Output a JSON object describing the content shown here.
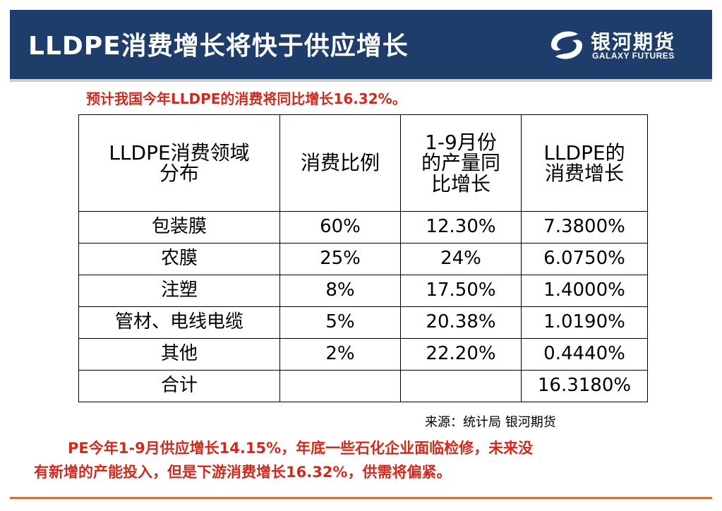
{
  "header": {
    "title": "LLDPE消费增长将快于供应增长",
    "logo_cn": "银河期货",
    "logo_en": "GALAXY FUTURES",
    "logo_icon": "galaxy-swirl-icon",
    "bg_color": "#1f3d6b"
  },
  "intro": "预计我国今年LLDPE的消费将同比增长16.32%。",
  "table": {
    "headers": [
      "LLDPE消费领域分布",
      "消费比例",
      "1-9月份的产量同比增长",
      "LLDPE的消费增长"
    ],
    "header_lines": [
      [
        "LLDPE消费领域",
        "分布"
      ],
      [
        "消费比例"
      ],
      [
        "1-9月份",
        "的产量同",
        "比增长"
      ],
      [
        "LLDPE的",
        "消费增长"
      ]
    ],
    "rows": [
      [
        "包装膜",
        "60%",
        "12.30%",
        "7.3800%"
      ],
      [
        "农膜",
        "25%",
        "24%",
        "6.0750%"
      ],
      [
        "注塑",
        "8%",
        "17.50%",
        "1.4000%"
      ],
      [
        "管材、电线电缆",
        "5%",
        "20.38%",
        "1.0190%"
      ],
      [
        "其他",
        "2%",
        "22.20%",
        "0.4440%"
      ],
      [
        "合计",
        "",
        "",
        "16.3180%"
      ]
    ]
  },
  "source": "来源：统计局 银河期货",
  "conclusion": {
    "line1": "PE今年1-9月供应增长14.15%，年底一些石化企业面临检修，未来没",
    "line2": "有新增的产能投入，但是下游消费增长16.32%，供需将偏紧。"
  },
  "colors": {
    "accent_red": "#d4281c",
    "footer_rule": "#e06a3a"
  }
}
